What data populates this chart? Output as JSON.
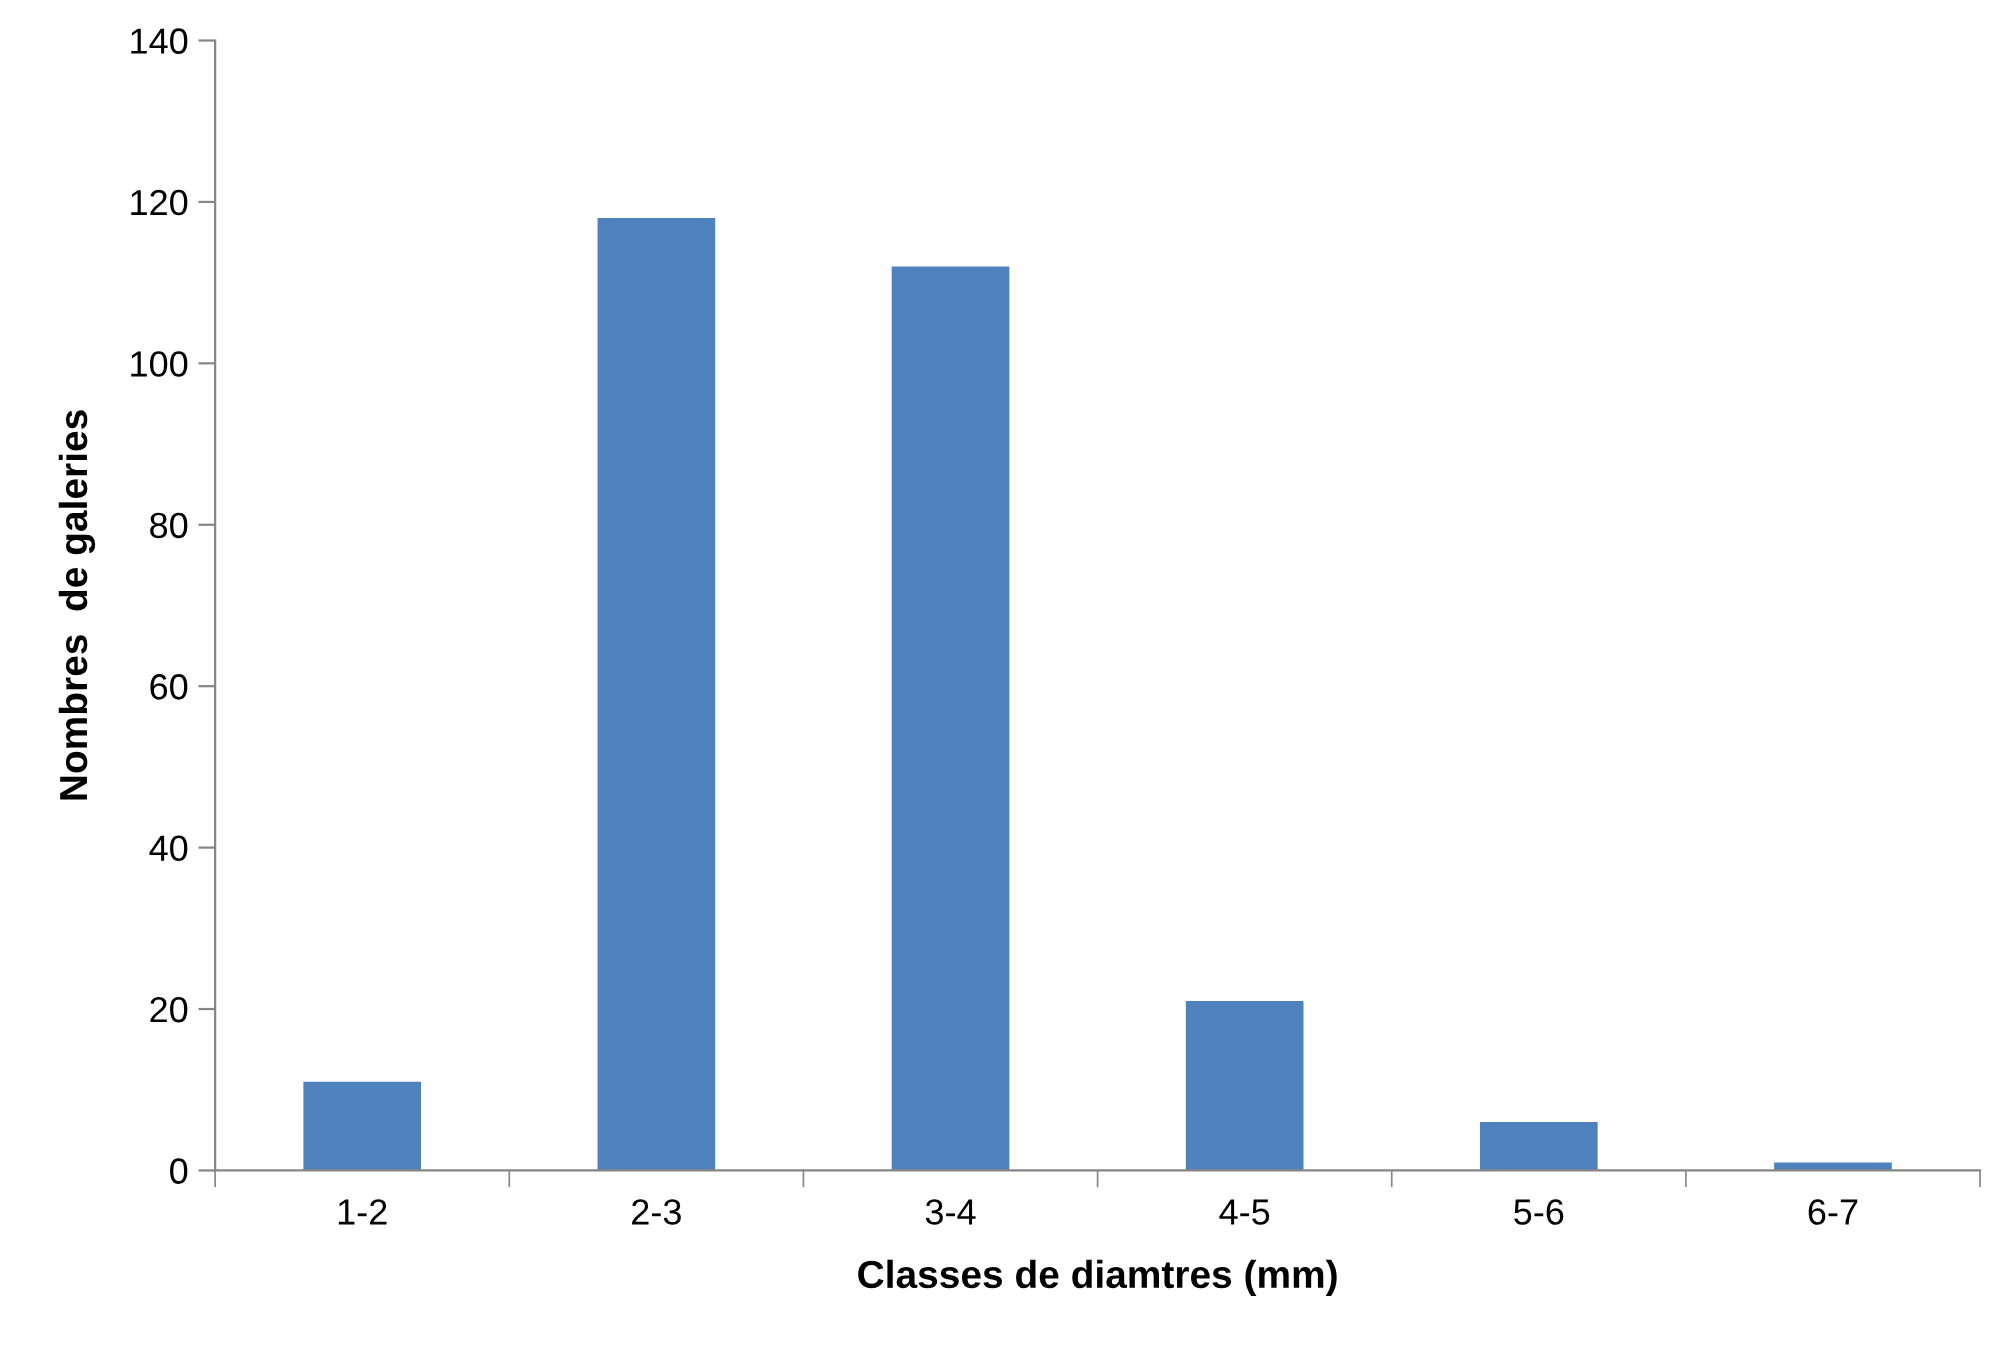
{
  "chart_data": {
    "type": "bar",
    "xlabel": "Classes de diamtres (mm)",
    "ylabel": "Nombres  de galeries",
    "categories": [
      "1-2",
      "2-3",
      "3-4",
      "4-5",
      "5-6",
      "6-7"
    ],
    "values": [
      11,
      118,
      112,
      21,
      6,
      1
    ],
    "color": "#4f81bd",
    "ylim": [
      0,
      140
    ],
    "yticks": [
      0,
      20,
      40,
      60,
      80,
      100,
      120,
      140
    ],
    "grid": false,
    "legend": false
  }
}
